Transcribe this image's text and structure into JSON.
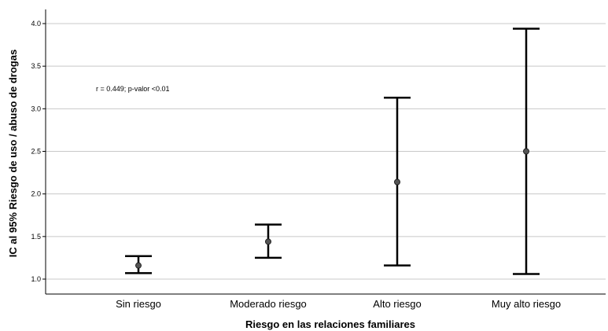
{
  "chart_data": {
    "type": "errorbar",
    "title": "",
    "xlabel": "Riesgo en las relaciones familiares",
    "ylabel": "IC al 95% Riesgo de uso / abuso de drogas",
    "ylim": [
      0.85,
      4.15
    ],
    "yticks": [
      1.0,
      1.5,
      2.0,
      2.5,
      3.0,
      3.5,
      4.0
    ],
    "ytick_labels": [
      "1.0",
      "1.5",
      "2.0",
      "2.5",
      "3.0",
      "3.5",
      "4.0"
    ],
    "grid": true,
    "categories": [
      "Sin riesgo",
      "Moderado riesgo",
      "Alto riesgo",
      "Muy alto riesgo"
    ],
    "means": [
      1.16,
      1.44,
      2.14,
      2.5
    ],
    "lower": [
      1.07,
      1.25,
      1.16,
      1.06
    ],
    "upper": [
      1.27,
      1.64,
      3.13,
      3.94
    ],
    "annotation": "r = 0.449; p-valor <0.01",
    "colors": {
      "bar": "#000000",
      "point": "#555555",
      "grid": "#c8c8c8",
      "axis": "#000000"
    }
  }
}
